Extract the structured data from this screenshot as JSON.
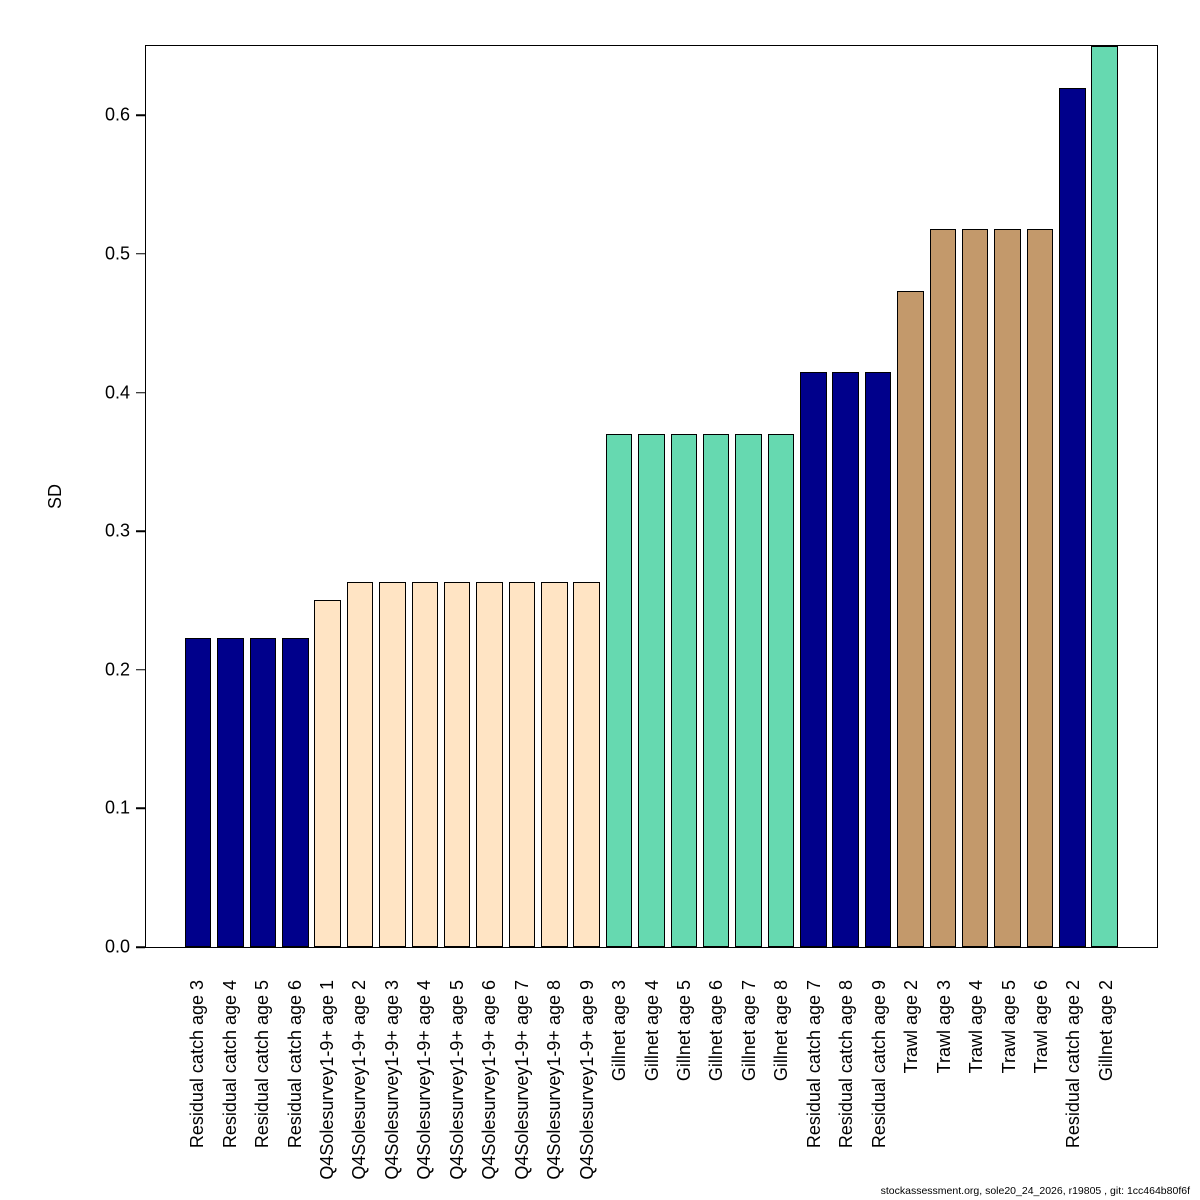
{
  "chart_data": {
    "type": "bar",
    "title": "",
    "xlabel": "",
    "ylabel": "SD",
    "ylim": [
      0,
      0.65
    ],
    "grid": false,
    "legend": "none",
    "yticks": [
      0.0,
      0.1,
      0.2,
      0.3,
      0.4,
      0.5,
      0.6
    ],
    "ytick_labels": [
      "0.0",
      "0.1",
      "0.2",
      "0.3",
      "0.4",
      "0.5",
      "0.6"
    ],
    "categories": [
      "Residual catch age 3",
      "Residual catch age 4",
      "Residual catch age 5",
      "Residual catch age 6",
      "Q4Solesurvey1-9+ age 1",
      "Q4Solesurvey1-9+ age 2",
      "Q4Solesurvey1-9+ age 3",
      "Q4Solesurvey1-9+ age 4",
      "Q4Solesurvey1-9+ age 5",
      "Q4Solesurvey1-9+ age 6",
      "Q4Solesurvey1-9+ age 7",
      "Q4Solesurvey1-9+ age 8",
      "Q4Solesurvey1-9+ age 9",
      "Gillnet age 3",
      "Gillnet age 4",
      "Gillnet age 5",
      "Gillnet age 6",
      "Gillnet age 7",
      "Gillnet age 8",
      "Residual catch age 7",
      "Residual catch age 8",
      "Residual catch age 9",
      "Trawl age 2",
      "Trawl age 3",
      "Trawl age 4",
      "Trawl age 5",
      "Trawl age 6",
      "Residual catch age 2",
      "Gillnet age 2"
    ],
    "values": [
      0.223,
      0.223,
      0.223,
      0.223,
      0.25,
      0.263,
      0.263,
      0.263,
      0.263,
      0.263,
      0.263,
      0.263,
      0.263,
      0.37,
      0.37,
      0.37,
      0.37,
      0.37,
      0.37,
      0.415,
      0.415,
      0.415,
      0.473,
      0.518,
      0.518,
      0.518,
      0.518,
      0.62,
      0.65
    ],
    "fleets": [
      "Residual catch",
      "Residual catch",
      "Residual catch",
      "Residual catch",
      "Q4Solesurvey1-9+",
      "Q4Solesurvey1-9+",
      "Q4Solesurvey1-9+",
      "Q4Solesurvey1-9+",
      "Q4Solesurvey1-9+",
      "Q4Solesurvey1-9+",
      "Q4Solesurvey1-9+",
      "Q4Solesurvey1-9+",
      "Q4Solesurvey1-9+",
      "Gillnet",
      "Gillnet",
      "Gillnet",
      "Gillnet",
      "Gillnet",
      "Gillnet",
      "Residual catch",
      "Residual catch",
      "Residual catch",
      "Trawl",
      "Trawl",
      "Trawl",
      "Trawl",
      "Trawl",
      "Residual catch",
      "Gillnet"
    ],
    "fleet_colors": {
      "Residual catch": "#00008B",
      "Q4Solesurvey1-9+": "#FFE4C4",
      "Gillnet": "#66D9B0",
      "Trawl": "#C3996B"
    },
    "bar_border_color": "#000000"
  },
  "footer": {
    "text": "stockassessment.org, sole20_24_2026, r19805 , git: 1cc464b80f6f"
  }
}
